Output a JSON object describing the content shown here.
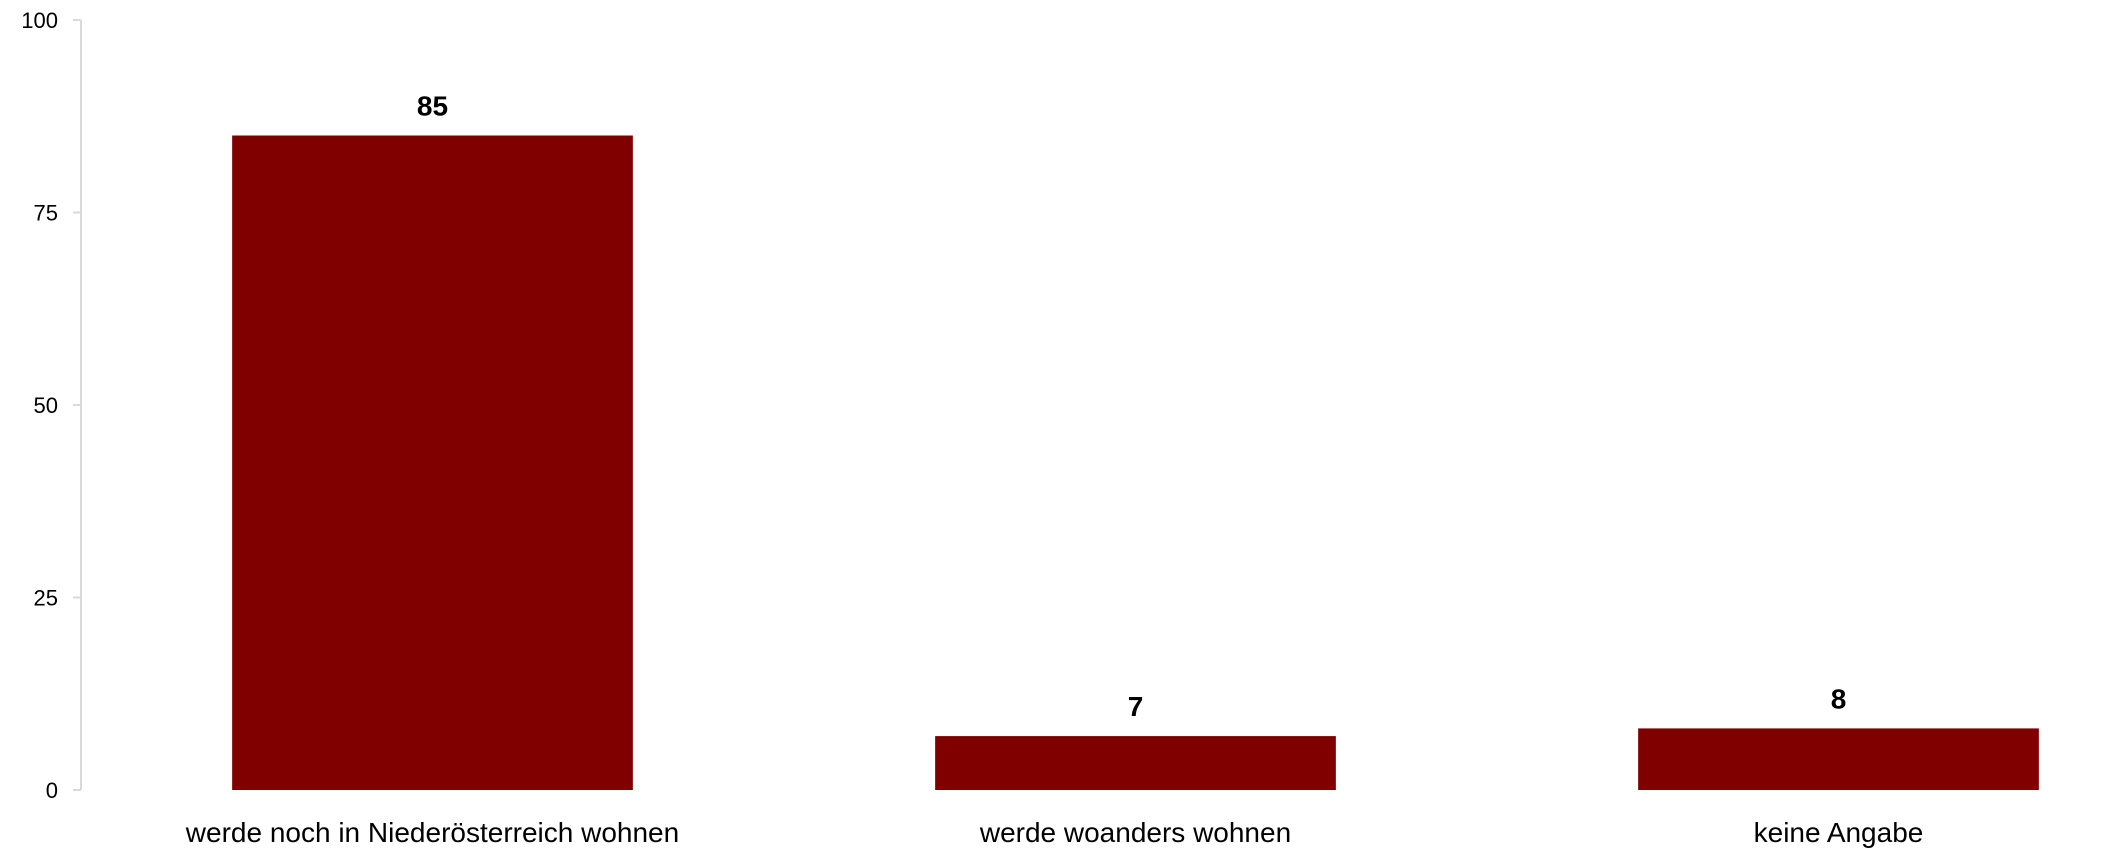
{
  "chart_data": {
    "type": "bar",
    "categories": [
      "werde noch in Niederösterreich wohnen",
      "werde woanders wohnen",
      "keine Angabe"
    ],
    "values": [
      85,
      7,
      8
    ],
    "data_labels": [
      "85",
      "7",
      "8"
    ],
    "title": "",
    "xlabel": "",
    "ylabel": "",
    "ylim": [
      0,
      100
    ],
    "yticks": [
      0,
      25,
      50,
      75,
      100
    ],
    "ytick_labels": [
      "0",
      "25",
      "50",
      "75",
      "100"
    ],
    "grid": false,
    "legend": "none",
    "colors": {
      "bar": "#800000",
      "axis": "#d9d9d9"
    }
  }
}
